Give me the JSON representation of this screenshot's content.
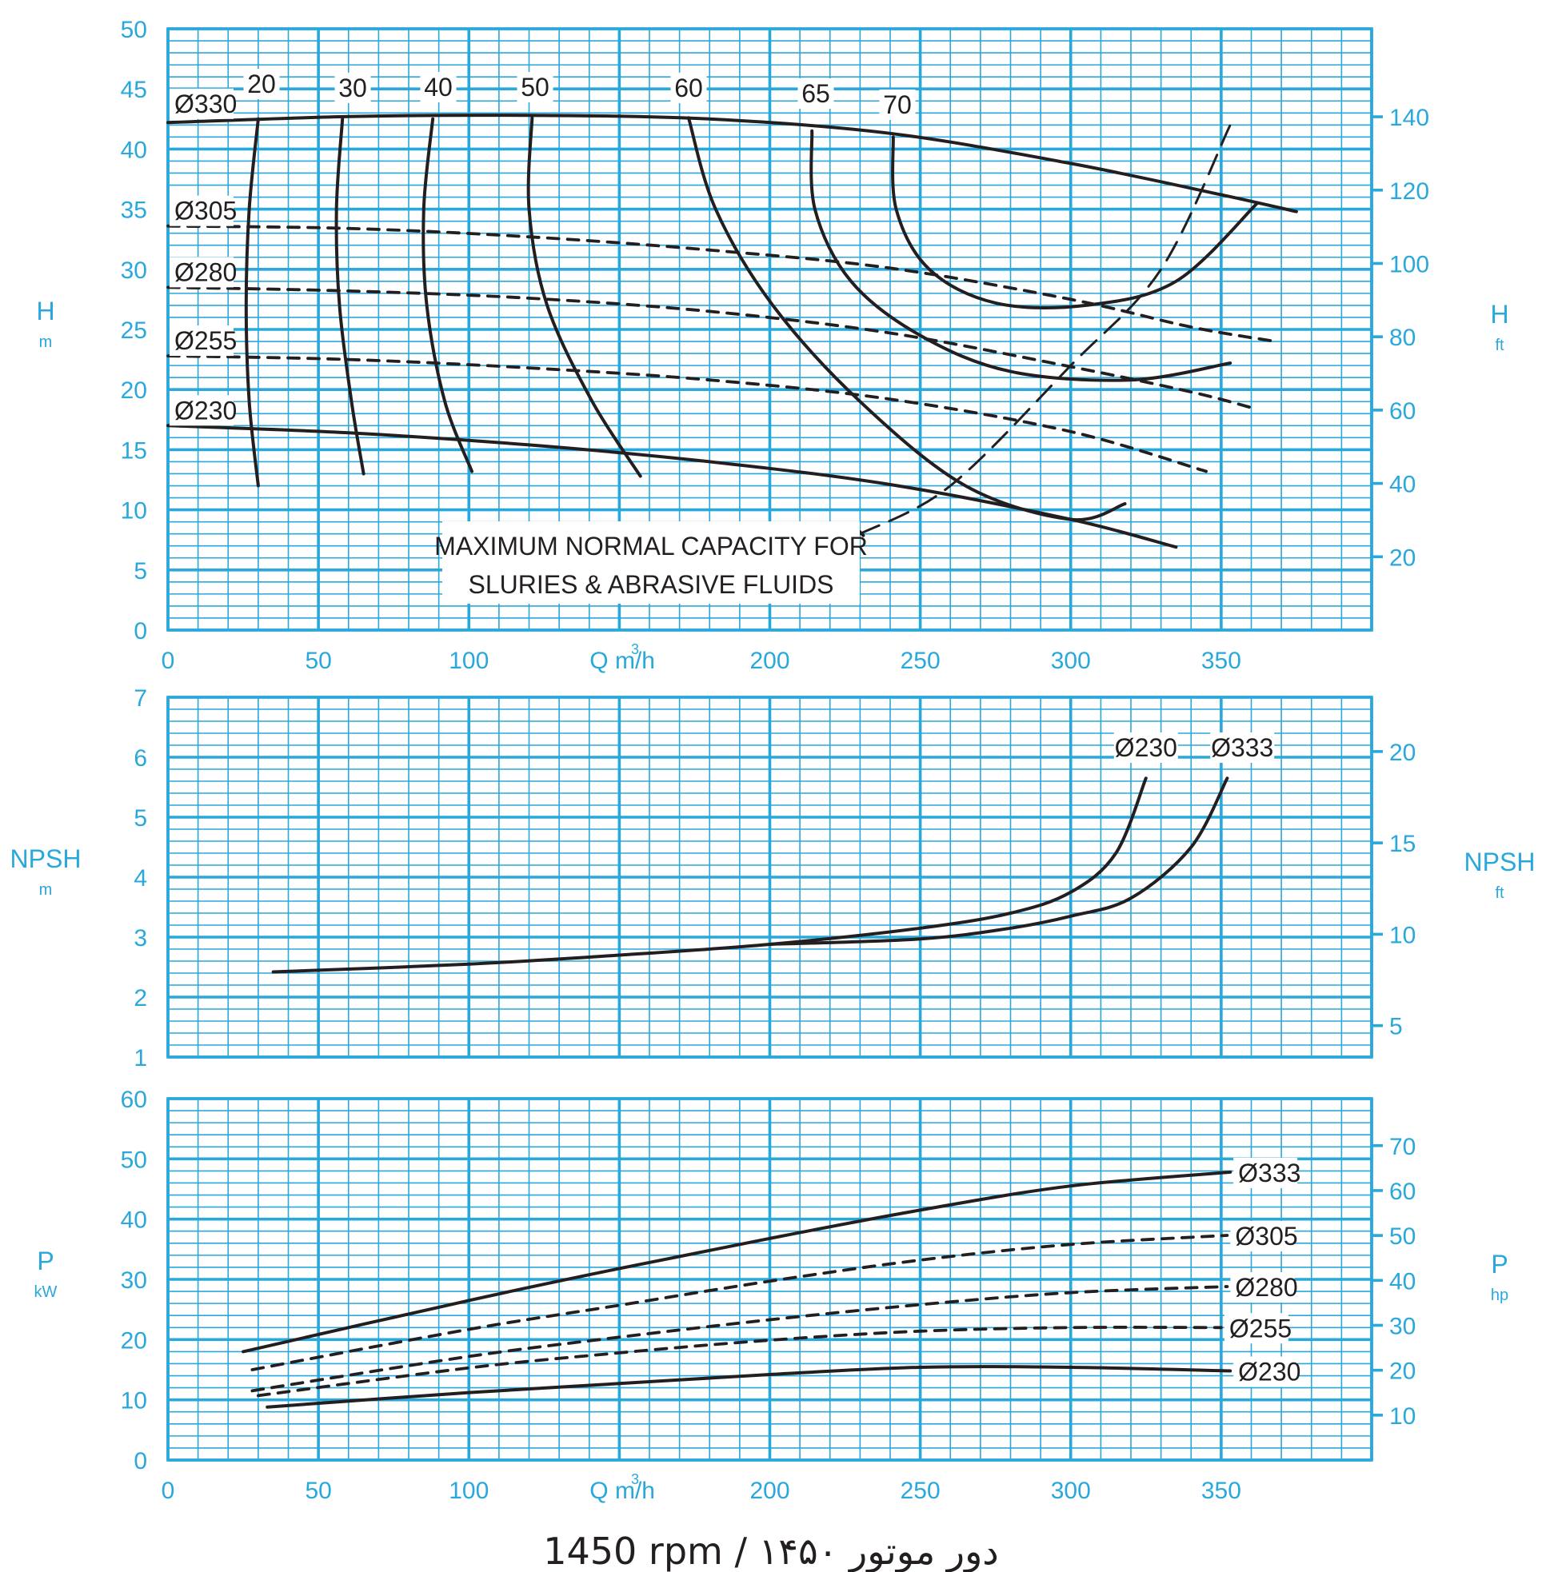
{
  "footer": "1450 rpm / ۱۴۵۰ دور موتور",
  "chart_data": [
    {
      "type": "line",
      "xlabel": "Q m³/h",
      "ylabel": "H",
      "ylabel_unit": "m",
      "y2label": "H",
      "y2label_unit": "ft",
      "xlim": [
        0,
        400
      ],
      "ylim": [
        0,
        50
      ],
      "y2lim": [
        0,
        164
      ],
      "x_ticks": [
        0,
        50,
        100,
        150,
        200,
        250,
        300,
        350
      ],
      "x_tick_labels": [
        "0",
        "50",
        "100",
        "",
        "200",
        "250",
        "300",
        "350"
      ],
      "y_ticks": [
        0,
        5,
        10,
        15,
        20,
        25,
        30,
        35,
        40,
        45,
        50
      ],
      "y2_ticks": [
        20,
        40,
        60,
        80,
        100,
        120,
        140
      ],
      "grid": true,
      "series": [
        {
          "name": "Ø330",
          "style": "solid",
          "label_at": [
            0,
            42.5
          ],
          "x": [
            0,
            60,
            120,
            180,
            240,
            300,
            350,
            375
          ],
          "y": [
            42.2,
            42.7,
            42.8,
            42.5,
            41.3,
            38.8,
            36.2,
            34.8
          ]
        },
        {
          "name": "Ø305",
          "style": "dashed",
          "label_at": [
            0,
            33.6
          ],
          "x": [
            0,
            60,
            120,
            180,
            240,
            300,
            340,
            368
          ],
          "y": [
            33.6,
            33.4,
            32.7,
            31.6,
            30.1,
            27.5,
            25.2,
            24.0
          ]
        },
        {
          "name": "Ø280",
          "style": "dashed",
          "label_at": [
            0,
            28.5
          ],
          "x": [
            0,
            60,
            120,
            180,
            240,
            300,
            340,
            360
          ],
          "y": [
            28.5,
            28.2,
            27.6,
            26.5,
            24.7,
            21.9,
            19.8,
            18.5
          ]
        },
        {
          "name": "Ø255",
          "style": "dashed",
          "label_at": [
            0,
            22.8
          ],
          "x": [
            0,
            60,
            120,
            180,
            240,
            300,
            345
          ],
          "y": [
            22.8,
            22.5,
            21.8,
            20.8,
            19.2,
            16.5,
            13.2
          ]
        },
        {
          "name": "Ø230",
          "style": "solid",
          "label_at": [
            0,
            17.0
          ],
          "x": [
            0,
            60,
            120,
            180,
            240,
            300,
            335
          ],
          "y": [
            17.0,
            16.4,
            15.4,
            14.0,
            12.1,
            9.2,
            6.9
          ]
        }
      ],
      "efficiency_curves": [
        {
          "label": "20",
          "x": [
            30,
            27,
            26,
            27,
            30
          ],
          "y": [
            42.5,
            35,
            27,
            19,
            12
          ]
        },
        {
          "label": "30",
          "x": [
            58,
            56,
            57,
            61,
            65
          ],
          "y": [
            42.5,
            35,
            27,
            19,
            13
          ]
        },
        {
          "label": "40",
          "x": [
            88,
            85,
            86,
            92,
            101
          ],
          "y": [
            42.5,
            35,
            27,
            19,
            13.2
          ]
        },
        {
          "label": "50",
          "x": [
            121,
            120,
            126,
            141,
            157
          ],
          "y": [
            42.6,
            35,
            27,
            19,
            12.8
          ]
        },
        {
          "label": "60",
          "x": [
            173,
            182,
            201,
            230,
            265,
            300,
            318
          ],
          "y": [
            42.6,
            35,
            27,
            19,
            12,
            9.2,
            10.5
          ]
        },
        {
          "label": "65",
          "x": [
            214,
            215,
            227,
            250,
            280,
            320,
            353
          ],
          "y": [
            41.5,
            35,
            29,
            24.5,
            21.5,
            20.8,
            22.2
          ]
        },
        {
          "label": "70",
          "x": [
            241,
            242,
            253,
            275,
            305,
            335,
            362
          ],
          "y": [
            41,
            35,
            30,
            27.2,
            27.0,
            29.0,
            35.5
          ]
        }
      ],
      "max_capacity_line": {
        "x": [
          230,
          260,
          300,
          330,
          353
        ],
        "y": [
          8,
          12,
          22,
          30,
          42
        ]
      },
      "annotation": [
        "MAXIMUM NORMAL CAPACITY FOR",
        "SLURIES & ABRASIVE FLUIDS"
      ]
    },
    {
      "type": "line",
      "ylabel": "NPSH",
      "ylabel_unit": "m",
      "y2label": "NPSH",
      "y2label_unit": "ft",
      "xlim": [
        0,
        400
      ],
      "ylim": [
        1,
        7
      ],
      "y2lim": [
        3.28,
        22.97
      ],
      "y_ticks": [
        1,
        2,
        3,
        4,
        5,
        6,
        7
      ],
      "y2_ticks": [
        5,
        10,
        15,
        20
      ],
      "grid": true,
      "series": [
        {
          "name": "Ø230",
          "label_at": [
            325,
            6.2
          ],
          "x": [
            35,
            100,
            150,
            200,
            250,
            280,
            300,
            315,
            325
          ],
          "y": [
            2.42,
            2.55,
            2.7,
            2.88,
            3.15,
            3.4,
            3.75,
            4.4,
            5.65
          ]
        },
        {
          "name": "Ø333",
          "label_at": [
            357,
            6.2
          ],
          "x": [
            200,
            250,
            280,
            300,
            320,
            340,
            352
          ],
          "y": [
            2.88,
            2.97,
            3.15,
            3.35,
            3.65,
            4.5,
            5.65
          ]
        }
      ]
    },
    {
      "type": "line",
      "xlabel": "Q m³/h",
      "ylabel": "P",
      "ylabel_unit": "kW",
      "y2label": "P",
      "y2label_unit": "hp",
      "xlim": [
        0,
        400
      ],
      "ylim": [
        0,
        60
      ],
      "y2lim": [
        0,
        80.46
      ],
      "x_ticks": [
        0,
        50,
        100,
        150,
        200,
        250,
        300,
        350
      ],
      "x_tick_labels": [
        "0",
        "50",
        "100",
        "",
        "200",
        "250",
        "300",
        "350"
      ],
      "y_ticks": [
        0,
        10,
        20,
        30,
        40,
        50,
        60
      ],
      "y2_ticks": [
        10,
        20,
        30,
        40,
        50,
        60,
        70
      ],
      "grid": true,
      "series": [
        {
          "name": "Ø333",
          "style": "solid",
          "x": [
            25,
            100,
            150,
            200,
            250,
            300,
            353
          ],
          "y": [
            18.0,
            26.5,
            31.8,
            36.8,
            41.5,
            45.5,
            47.8
          ]
        },
        {
          "name": "Ø305",
          "style": "dashed",
          "x": [
            28,
            100,
            150,
            200,
            250,
            300,
            352
          ],
          "y": [
            15.0,
            21.7,
            25.7,
            29.7,
            33.2,
            35.8,
            37.3
          ]
        },
        {
          "name": "Ø280",
          "style": "dashed",
          "x": [
            28,
            100,
            150,
            200,
            250,
            300,
            352
          ],
          "y": [
            11.5,
            17.2,
            20.4,
            23.3,
            25.8,
            27.8,
            28.8
          ]
        },
        {
          "name": "Ø255",
          "style": "dashed",
          "x": [
            30,
            100,
            150,
            200,
            250,
            300,
            350
          ],
          "y": [
            10.7,
            15.3,
            17.8,
            19.9,
            21.4,
            22.0,
            22.0
          ]
        },
        {
          "name": "Ø230",
          "style": "solid",
          "x": [
            33,
            100,
            150,
            200,
            250,
            300,
            353
          ],
          "y": [
            8.8,
            11.2,
            12.7,
            14.2,
            15.4,
            15.4,
            14.8
          ]
        }
      ]
    }
  ]
}
